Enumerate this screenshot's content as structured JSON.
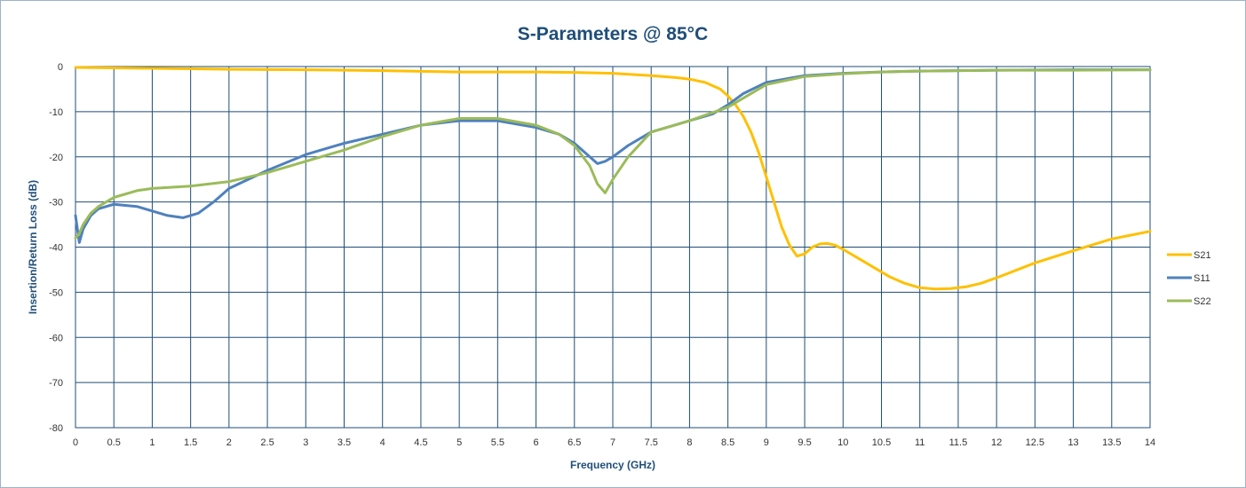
{
  "chart_data": {
    "type": "line",
    "title": "S-Parameters @ 85°C",
    "xlabel": "Frequency (GHz)",
    "ylabel": "Insertion/Return Loss (dB)",
    "xlim": [
      0,
      14
    ],
    "ylim": [
      -80,
      0
    ],
    "x_major_step": 0.5,
    "y_major_step": 10,
    "grid": true,
    "legend_position": "right",
    "x_ticks": [
      "0",
      "0.5",
      "1",
      "1.5",
      "2",
      "2.5",
      "3",
      "3.5",
      "4",
      "4.5",
      "5",
      "5.5",
      "6",
      "6.5",
      "7",
      "7.5",
      "8",
      "8.5",
      "9",
      "9.5",
      "10",
      "10.5",
      "11",
      "11.5",
      "12",
      "12.5",
      "13",
      "13.5",
      "14"
    ],
    "y_ticks": [
      "0",
      "-10",
      "-20",
      "-30",
      "-40",
      "-50",
      "-60",
      "-70",
      "-80"
    ],
    "series": [
      {
        "name": "S21",
        "color": "#ffc000",
        "x": [
          0,
          0.5,
          1,
          1.5,
          2,
          3,
          4,
          5,
          6,
          6.5,
          7,
          7.5,
          7.8,
          8,
          8.2,
          8.4,
          8.5,
          8.6,
          8.7,
          8.8,
          8.9,
          9.0,
          9.1,
          9.2,
          9.3,
          9.4,
          9.5,
          9.6,
          9.7,
          9.8,
          9.9,
          10.0,
          10.2,
          10.4,
          10.6,
          10.8,
          11.0,
          11.2,
          11.4,
          11.6,
          11.8,
          12.0,
          12.5,
          13.0,
          13.5,
          14.0
        ],
        "y": [
          -0.2,
          -0.3,
          -0.4,
          -0.5,
          -0.6,
          -0.7,
          -0.9,
          -1.2,
          -1.2,
          -1.3,
          -1.5,
          -2.0,
          -2.4,
          -2.8,
          -3.5,
          -5.0,
          -6.5,
          -8.5,
          -11.0,
          -14.5,
          -19.0,
          -24.5,
          -30.0,
          -35.5,
          -39.5,
          -42.0,
          -41.5,
          -40.0,
          -39.3,
          -39.2,
          -39.6,
          -40.5,
          -42.5,
          -44.5,
          -46.5,
          -48.0,
          -49.0,
          -49.3,
          -49.2,
          -48.8,
          -48.0,
          -46.8,
          -43.5,
          -40.8,
          -38.2,
          -36.5
        ]
      },
      {
        "name": "S11",
        "color": "#4f81bd",
        "x": [
          0,
          0.05,
          0.1,
          0.2,
          0.3,
          0.5,
          0.8,
          1.0,
          1.2,
          1.4,
          1.6,
          1.8,
          2.0,
          2.5,
          3.0,
          3.5,
          4.0,
          4.5,
          5.0,
          5.5,
          6.0,
          6.3,
          6.5,
          6.7,
          6.8,
          6.9,
          7.0,
          7.2,
          7.5,
          8.0,
          8.3,
          8.5,
          8.7,
          9.0,
          9.5,
          10.0,
          10.5,
          11.0,
          12.0,
          13.0,
          14.0
        ],
        "y": [
          -33,
          -39,
          -36,
          -33,
          -31.5,
          -30.5,
          -31,
          -32,
          -33,
          -33.5,
          -32.5,
          -30,
          -27,
          -23,
          -19.5,
          -17,
          -15,
          -13,
          -12,
          -12,
          -13.5,
          -15,
          -17,
          -20,
          -21.5,
          -21,
          -20,
          -17.5,
          -14.5,
          -12,
          -10.5,
          -8.5,
          -6,
          -3.5,
          -2.0,
          -1.5,
          -1.2,
          -1.0,
          -0.8,
          -0.7,
          -0.7
        ]
      },
      {
        "name": "S22",
        "color": "#9bbb59",
        "x": [
          0,
          0.05,
          0.1,
          0.2,
          0.3,
          0.5,
          0.8,
          1.0,
          1.5,
          2.0,
          2.5,
          3.0,
          3.5,
          4.0,
          4.5,
          5.0,
          5.5,
          6.0,
          6.3,
          6.5,
          6.7,
          6.8,
          6.9,
          7.0,
          7.2,
          7.5,
          8.0,
          8.5,
          9.0,
          9.5,
          10.0,
          10.5,
          11.0,
          12.0,
          13.0,
          14.0
        ],
        "y": [
          -38,
          -37,
          -35,
          -32.5,
          -31,
          -29,
          -27.5,
          -27,
          -26.5,
          -25.5,
          -23.5,
          -21,
          -18.5,
          -15.5,
          -13,
          -11.5,
          -11.5,
          -13,
          -15,
          -17.5,
          -22,
          -26,
          -28,
          -25,
          -20,
          -14.5,
          -12,
          -9,
          -4.0,
          -2.2,
          -1.6,
          -1.2,
          -1.0,
          -0.8,
          -0.8,
          -0.7
        ]
      }
    ]
  }
}
